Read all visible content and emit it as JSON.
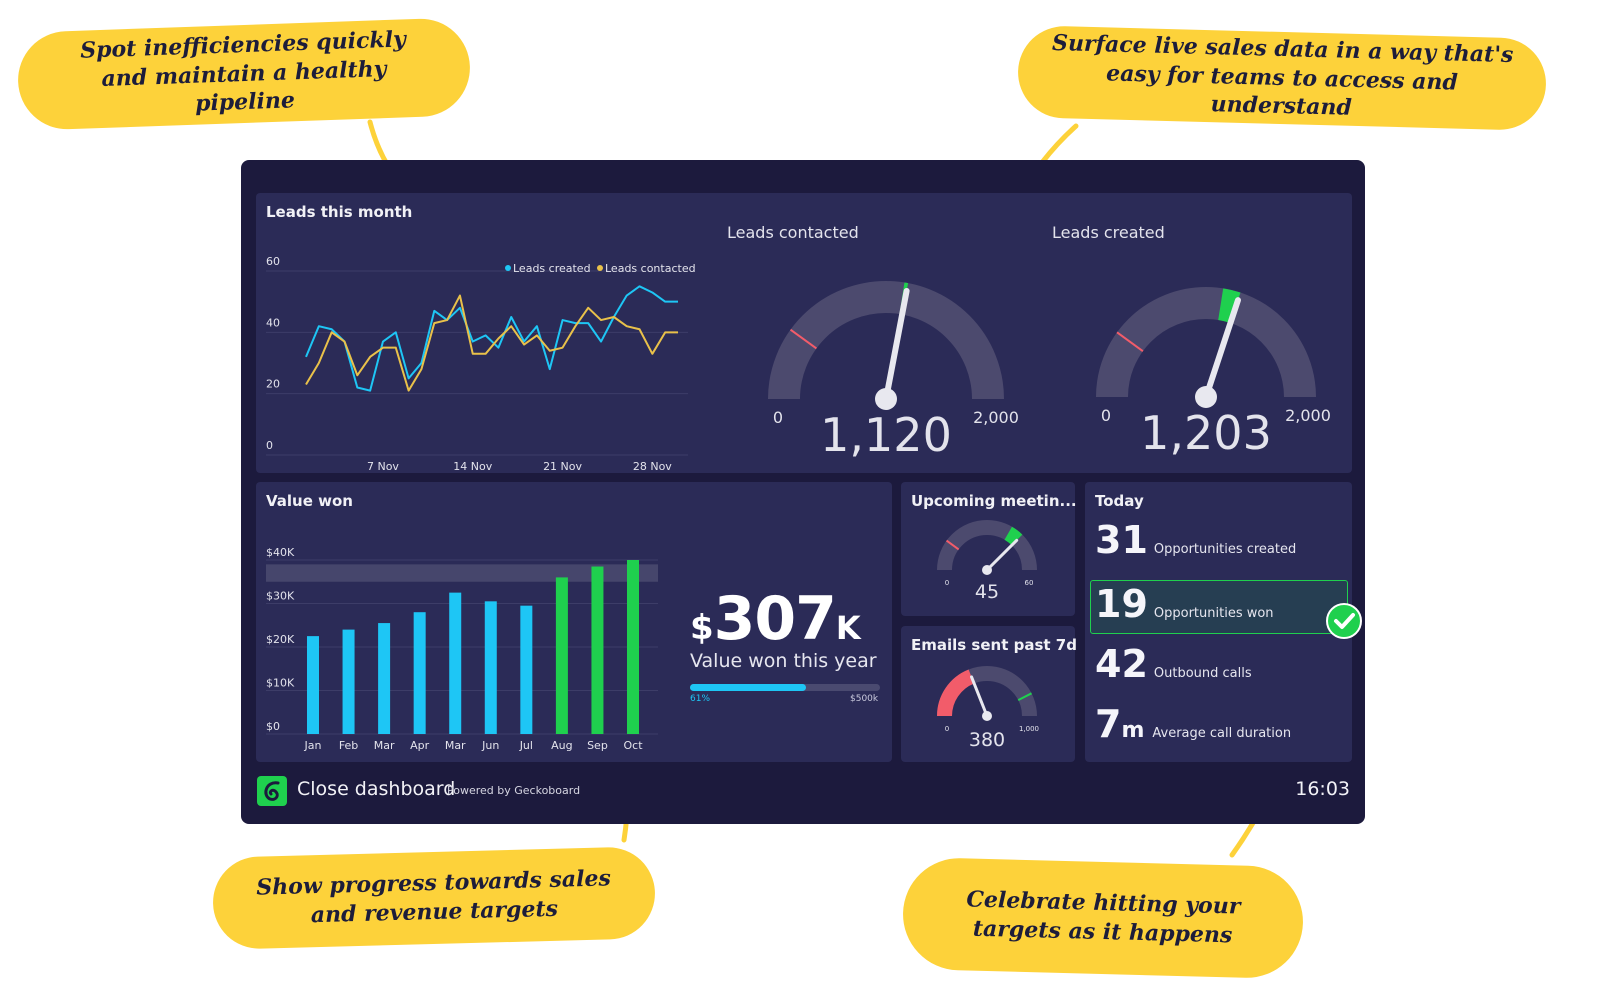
{
  "callouts": {
    "top_left": "Spot inefficiencies quickly and maintain a healthy pipeline",
    "top_right": "Surface live sales data in a way that's easy for teams to access and understand",
    "bottom_left": "Show progress towards sales and revenue targets",
    "bottom_right": "Celebrate hitting your targets as it happens"
  },
  "colors": {
    "callout": "#fdd23a",
    "dashboard_bg": "#1c1a3d",
    "panel_bg": "#2b2b57",
    "blue": "#1ec6f5",
    "green": "#1fd04e",
    "yellow": "#e9c14a",
    "red": "#f25c6a"
  },
  "leads_panel": {
    "title": "Leads this month"
  },
  "gauges": {
    "leads_contacted": {
      "title": "Leads contacted",
      "min": "0",
      "max": "2,000",
      "value": "1,120"
    },
    "leads_created": {
      "title": "Leads created",
      "min": "0",
      "max": "2,000",
      "value": "1,203"
    },
    "meetings": {
      "title": "Upcoming meetin...",
      "min": "0",
      "max": "60",
      "value": "45"
    },
    "emails": {
      "title": "Emails sent past 7d",
      "min": "0",
      "max": "1,000",
      "value": "380"
    }
  },
  "value_won": {
    "title": "Value won",
    "currency": "$",
    "amount": "307",
    "suffix": "K",
    "subtitle": "Value won this year",
    "progress_label": "61%",
    "progress_max": "$500k",
    "progress_fraction": 0.61
  },
  "today": {
    "title": "Today",
    "items": [
      {
        "value": "31",
        "unit": "",
        "label": "Opportunities created"
      },
      {
        "value": "19",
        "unit": "",
        "label": "Opportunities won"
      },
      {
        "value": "42",
        "unit": "",
        "label": "Outbound calls"
      },
      {
        "value": "7",
        "unit": "m",
        "label": "Average call duration"
      }
    ]
  },
  "footer": {
    "title": "Close dashboard",
    "powered": "Powered by Geckoboard",
    "time": "16:03"
  },
  "chart_data": [
    {
      "type": "line",
      "title": "Leads this month",
      "ylim": [
        0,
        60
      ],
      "yticks": [
        0,
        20,
        40,
        60
      ],
      "x_tick_labels": [
        "7 Nov",
        "14 Nov",
        "21 Nov",
        "28 Nov"
      ],
      "x": [
        1,
        2,
        3,
        4,
        5,
        6,
        7,
        8,
        9,
        10,
        11,
        12,
        13,
        14,
        15,
        16,
        17,
        18,
        19,
        20,
        21,
        22,
        23,
        24,
        25,
        26,
        27,
        28,
        29,
        30
      ],
      "series": [
        {
          "name": "Leads created",
          "color": "#1ec6f5",
          "values": [
            32,
            42,
            41,
            37,
            22,
            21,
            37,
            40,
            25,
            30,
            47,
            44,
            48,
            37,
            39,
            35,
            45,
            37,
            42,
            28,
            44,
            43,
            43,
            37,
            45,
            52,
            55,
            53,
            50,
            50
          ]
        },
        {
          "name": "Leads contacted",
          "color": "#e9c14a",
          "values": [
            23,
            30,
            40,
            37,
            26,
            32,
            35,
            35,
            21,
            28,
            43,
            44,
            52,
            33,
            33,
            38,
            42,
            36,
            39,
            34,
            35,
            42,
            48,
            44,
            45,
            42,
            41,
            33,
            40,
            40
          ]
        }
      ]
    },
    {
      "type": "bar",
      "title": "Value won",
      "categories": [
        "Jan",
        "Feb",
        "Mar",
        "Apr",
        "Mar",
        "Jun",
        "Jul",
        "Aug",
        "Sep",
        "Oct"
      ],
      "values": [
        22.5,
        24,
        25.5,
        28,
        32.5,
        30.5,
        29.5,
        36,
        38.5,
        40
      ],
      "bar_colors": [
        "#1ec6f5",
        "#1ec6f5",
        "#1ec6f5",
        "#1ec6f5",
        "#1ec6f5",
        "#1ec6f5",
        "#1ec6f5",
        "#1fd04e",
        "#1fd04e",
        "#1fd04e"
      ],
      "yticks": [
        "$0",
        "$10K",
        "$20K",
        "$30K",
        "$40K"
      ],
      "ylim": [
        0,
        40
      ],
      "target_band": [
        35,
        39
      ]
    },
    {
      "type": "gauge",
      "title": "Leads contacted",
      "min": 0,
      "max": 2000,
      "value": 1120,
      "target_start": 1100
    },
    {
      "type": "gauge",
      "title": "Leads created",
      "min": 0,
      "max": 2000,
      "value": 1203,
      "target_start": 1100
    },
    {
      "type": "gauge",
      "title": "Upcoming meetin...",
      "min": 0,
      "max": 60,
      "value": 45,
      "target_start": 40
    },
    {
      "type": "gauge",
      "title": "Emails sent past 7d",
      "min": 0,
      "max": 1000,
      "value": 380,
      "target_start": 850
    }
  ]
}
